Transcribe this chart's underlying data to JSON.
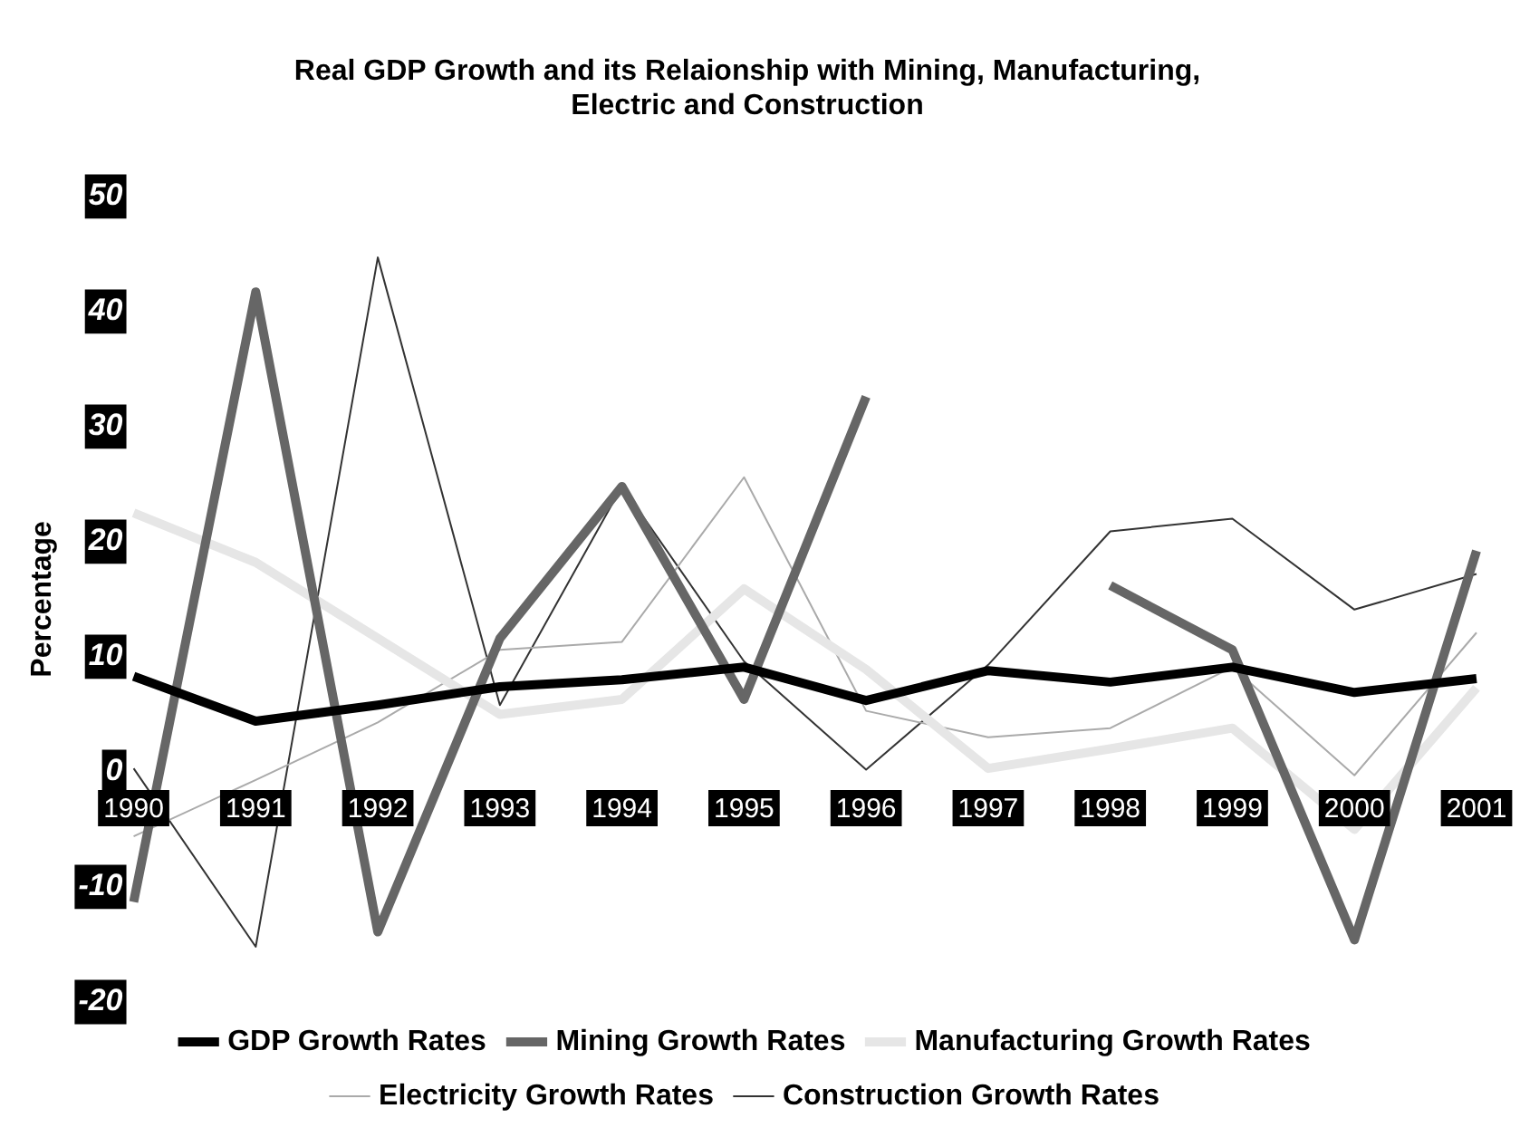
{
  "chart_data": {
    "type": "line",
    "title": "Real GDP Growth and its Relaionship with Mining, Manufacturing, Electric and Construction",
    "ylabel": "Percentage",
    "categories": [
      "1990",
      "1991",
      "1992",
      "1993",
      "1994",
      "1995",
      "1996",
      "1997",
      "1998",
      "1999",
      "2000",
      "2001"
    ],
    "ylim": [
      -20,
      50
    ],
    "yticks": [
      -20,
      -10,
      0,
      10,
      20,
      30,
      40,
      50
    ],
    "grid": false,
    "legend": "bottom",
    "marker": "none",
    "series": [
      {
        "name": "GDP Growth Rates",
        "color": "#000000",
        "values": [
          8.3,
          4.4,
          5.8,
          7.4,
          8.0,
          9.1,
          6.2,
          8.8,
          7.8,
          9.1,
          6.9,
          8.1
        ]
      },
      {
        "name": "Mining Growth Rates",
        "color": "#666666",
        "values": [
          -11.3,
          41.7,
          -13.9,
          11.6,
          24.8,
          6.3,
          32.6,
          null,
          16.2,
          10.6,
          -14.6,
          19.2
        ]
      },
      {
        "name": "Manufacturing Growth Rates",
        "color": "#e6e6e6",
        "values": [
          22.5,
          18.2,
          11.6,
          5.0,
          6.3,
          15.9,
          8.9,
          0.3,
          2.0,
          3.8,
          -5.0,
          7.3
        ]
      },
      {
        "name": "Electricity Growth Rates",
        "color": "#aaaaaa",
        "values": [
          -5.6,
          -0.7,
          4.3,
          10.6,
          11.3,
          25.6,
          5.3,
          3.0,
          3.8,
          9.1,
          -0.3,
          12.1
        ]
      },
      {
        "name": "Construction Growth Rates",
        "color": "#333333",
        "values": [
          0.3,
          -15.2,
          44.7,
          5.8,
          24.8,
          9.6,
          0.2,
          9.3,
          20.9,
          22.0,
          14.1,
          17.2
        ]
      }
    ]
  }
}
